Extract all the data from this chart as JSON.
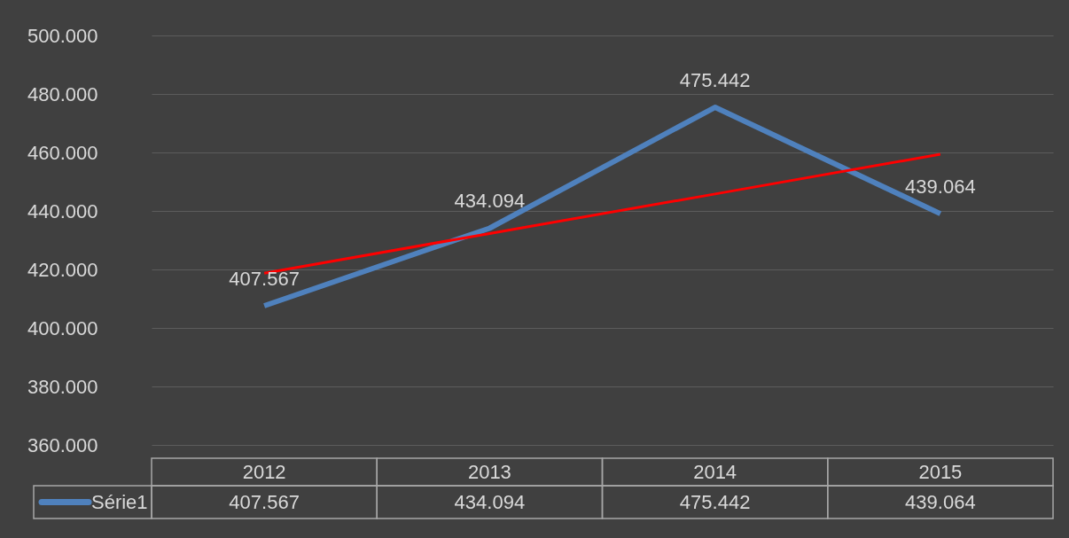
{
  "chart_data": {
    "type": "line",
    "categories": [
      "2012",
      "2013",
      "2014",
      "2015"
    ],
    "series": [
      {
        "name": "Série1",
        "color": "#4f81bd",
        "values": [
          407567,
          434094,
          475442,
          439064
        ],
        "value_labels": [
          "407.567",
          "434.094",
          "475.442",
          "439.064"
        ]
      },
      {
        "type": "line",
        "color": "#ff0000",
        "values": [
          418700,
          432300,
          445800,
          459400
        ]
      }
    ],
    "ylim": [
      360000,
      500000
    ],
    "yticks": [
      {
        "value": 360000,
        "label": "360.000"
      },
      {
        "value": 380000,
        "label": "380.000"
      },
      {
        "value": 400000,
        "label": "400.000"
      },
      {
        "value": 420000,
        "label": "420.000"
      },
      {
        "value": 440000,
        "label": "440.000"
      },
      {
        "value": 460000,
        "label": "460.000"
      },
      {
        "value": 480000,
        "label": "480.000"
      },
      {
        "value": 500000,
        "label": "500.000"
      }
    ],
    "grid": "y",
    "legend": "bottom",
    "marker": "none",
    "line_style": "solid"
  }
}
